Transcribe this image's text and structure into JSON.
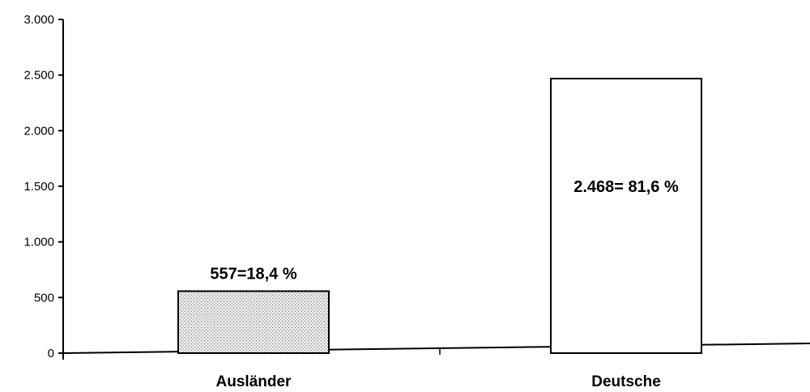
{
  "chart_data": {
    "type": "bar",
    "categories": [
      "Ausländer",
      "Deutsche"
    ],
    "values": [
      557,
      2468
    ],
    "data_labels": [
      "557=18,4 %",
      "2.468= 81,6 %"
    ],
    "bar_fills": [
      "dotted-gray",
      "white"
    ],
    "y_ticks": [
      0,
      500,
      1000,
      1500,
      2000,
      2500,
      3000
    ],
    "y_tick_labels": [
      "0",
      "500",
      "1.000",
      "1.500",
      "2.000",
      "2.500",
      "3.000"
    ],
    "ylim": [
      0,
      3000
    ],
    "grid": false,
    "legend": "none",
    "colors": {
      "axis": "#000000",
      "bar_edge": "#000000",
      "bar_fill_plain": "#ffffff",
      "bar_fill_dotted": "#d9d9d9"
    }
  }
}
